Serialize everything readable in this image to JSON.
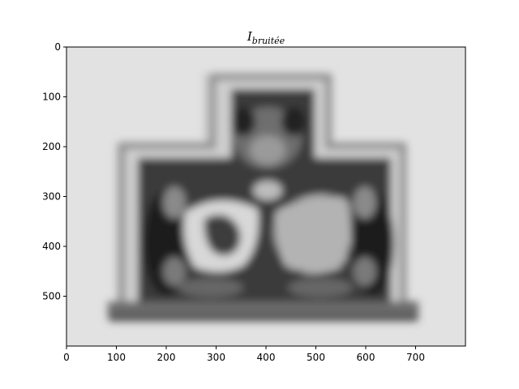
{
  "figure": {
    "title": {
      "main": "I",
      "subscript": "bruitée"
    }
  },
  "image_axes": {
    "xlim": [
      0,
      800
    ],
    "ylim": [
      600,
      0
    ],
    "x_ticks": [
      0,
      100,
      200,
      300,
      400,
      500,
      600,
      700
    ],
    "y_ticks": [
      0,
      100,
      200,
      300,
      400,
      500
    ],
    "colormap": "gray"
  },
  "picture": {
    "subject": "blurred grayscale photo of a carved stone coat of arms with two shields (lion and lozenge checker pattern) in a cross-shaped recessed frame on a light wall",
    "colors": {
      "wall": "#e2e2e2",
      "frame_light": "#d4d4d4",
      "frame_shadow": "#8a8a8a",
      "recess": "#3a3a3a",
      "shield_light": "#dcdcdc",
      "ornament_dark": "#202020"
    }
  }
}
